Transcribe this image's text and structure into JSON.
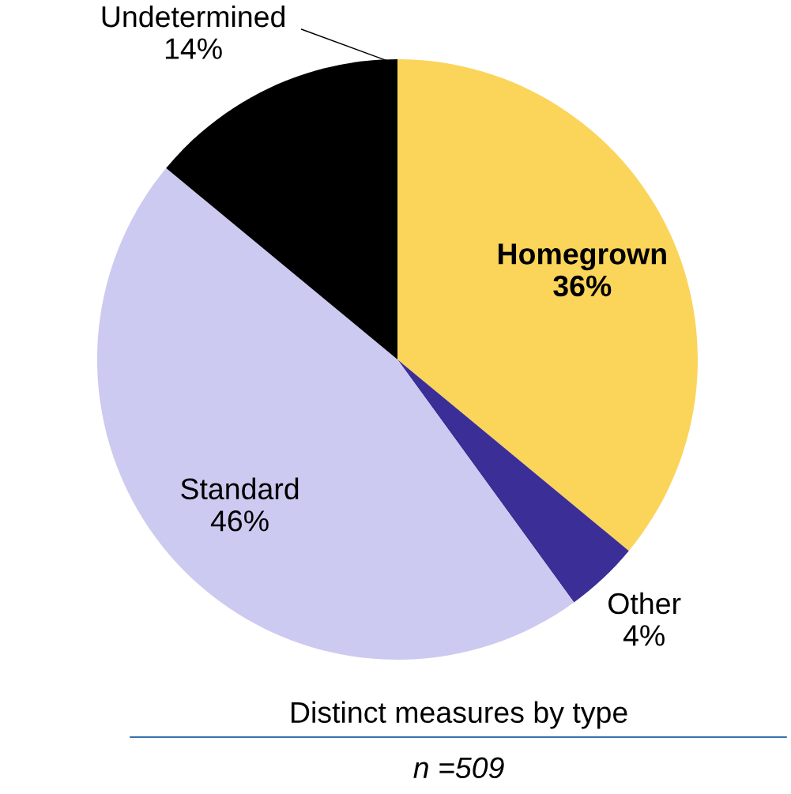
{
  "chart_data": {
    "type": "pie",
    "title": "Distinct measures by type",
    "subtitle": "n =509",
    "categories": [
      "Homegrown",
      "Other",
      "Standard",
      "Undetermined"
    ],
    "values": [
      36,
      4,
      46,
      14
    ],
    "colors": [
      "#fbd45a",
      "#3b2e96",
      "#cccaf0",
      "#000000"
    ],
    "value_labels": [
      "36%",
      "4%",
      "46%",
      "14%"
    ]
  }
}
